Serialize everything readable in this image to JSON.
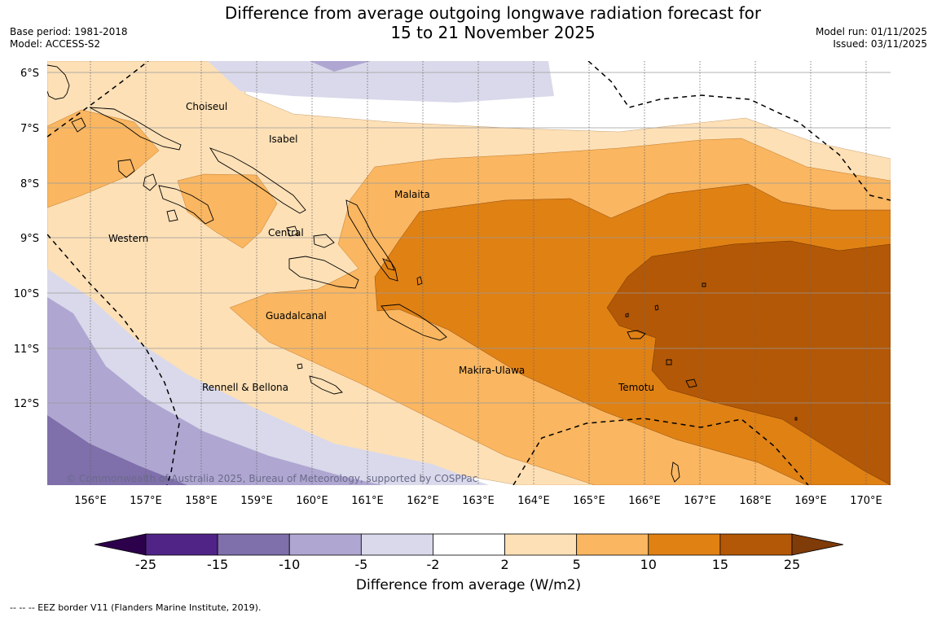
{
  "header": {
    "title_line1": "Difference from average outgoing longwave radiation forecast for",
    "title_line2": "15 to 21 November 2025",
    "base_period": "Base period: 1981-2018",
    "model": "Model: ACCESS-S2",
    "model_run": "Model run: 01/11/2025",
    "issued": "Issued: 03/11/2025"
  },
  "map": {
    "lat_labels": [
      "6°S",
      "7°S",
      "8°S",
      "9°S",
      "10°S",
      "11°S",
      "12°S"
    ],
    "lon_labels": [
      "156°E",
      "157°E",
      "158°E",
      "159°E",
      "160°E",
      "161°E",
      "162°E",
      "163°E",
      "164°E",
      "165°E",
      "166°E",
      "167°E",
      "168°E",
      "169°E",
      "170°E"
    ],
    "regions": {
      "choiseul": "Choiseul",
      "isabel": "Isabel",
      "malaita": "Malaita",
      "western": "Western",
      "central": "Central",
      "guadalcanal": "Guadalcanal",
      "makira": "Makira-Ulawa",
      "temotu": "Temotu",
      "rennell": "Rennell & Bellona"
    },
    "copyright": "© Commonwealth of Australia 2025, Bureau of Meteorology, supported by COSPPac"
  },
  "colorbar": {
    "levels": [
      "-25",
      "-15",
      "-10",
      "-5",
      "-2",
      "2",
      "5",
      "10",
      "15",
      "25"
    ],
    "colors": [
      "#4f2486",
      "#7f6fab",
      "#afa7d1",
      "#d9d9eb",
      "#ffffff",
      "#fde0b6",
      "#fab660",
      "#e08114",
      "#b35806"
    ],
    "under_color": "#2d004b",
    "over_color": "#7f3b08",
    "title": "Difference from average (W/m2)"
  },
  "footnote": "--  --  -- EEZ border V11 (Flanders Marine Institute, 2019)."
}
